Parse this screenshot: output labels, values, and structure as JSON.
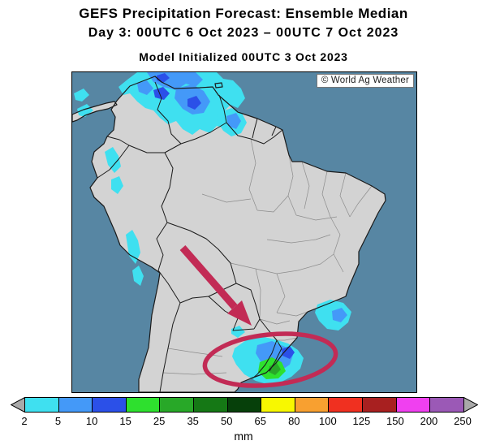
{
  "header": {
    "title": "GEFS Precipitation Forecast: Ensemble Median",
    "subtitle": "Day 3: 00UTC 6 Oct 2023 – 00UTC 7 Oct 2023",
    "model_init": "Model Initialized 00UTC 3 Oct 2023"
  },
  "map": {
    "attribution": "© World Ag Weather",
    "ocean_color": "#5786A3",
    "land_color": "#D3D3D3",
    "annotation_color": "#C22B55"
  },
  "legend": {
    "unit": "mm",
    "tick_labels": [
      "2",
      "5",
      "10",
      "15",
      "25",
      "35",
      "50",
      "65",
      "80",
      "100",
      "125",
      "150",
      "200",
      "250"
    ],
    "bin_colors": [
      "#3FE0F0",
      "#4499F8",
      "#2B50E8",
      "#2EE02E",
      "#28A828",
      "#157815",
      "#06400A",
      "#F8F800",
      "#F8A030",
      "#F03020",
      "#A82020",
      "#F040F0",
      "#9B59B6"
    ],
    "endcap_color": "#A9A9A9"
  },
  "chart_data": {
    "type": "heatmap",
    "title": "GEFS Precipitation Forecast: Ensemble Median",
    "valid_period": "Day 3: 00UTC 6 Oct 2023 – 00UTC 7 Oct 2023",
    "model_initialized": "Model Initialized 00UTC 3 Oct 2023",
    "unit": "mm",
    "scale_bins_mm": [
      2,
      5,
      10,
      15,
      25,
      35,
      50,
      65,
      80,
      100,
      125,
      150,
      200,
      250
    ],
    "scale_colors": [
      "#3FE0F0",
      "#4499F8",
      "#2B50E8",
      "#2EE02E",
      "#28A828",
      "#157815",
      "#06400A",
      "#F8F800",
      "#F8A030",
      "#F03020",
      "#A82020",
      "#F040F0",
      "#9B59B6"
    ],
    "depicted_precip": [
      {
        "region": "Northern South America (Colombia, Venezuela, Guyanas)",
        "range_mm": "2-15"
      },
      {
        "region": "Pacific coastal Colombia",
        "range_mm": "2-5"
      },
      {
        "region": "Peruvian Andes",
        "range_mm": "2-5"
      },
      {
        "region": "Southeast Brazil interior",
        "range_mm": "2-10"
      },
      {
        "region": "Southern Brazil (highlighted)",
        "range_mm": "2-35"
      }
    ],
    "annotations": [
      "magenta arrow pointing toward southern Brazil",
      "magenta ellipse circling southern Brazil precipitation area"
    ]
  }
}
